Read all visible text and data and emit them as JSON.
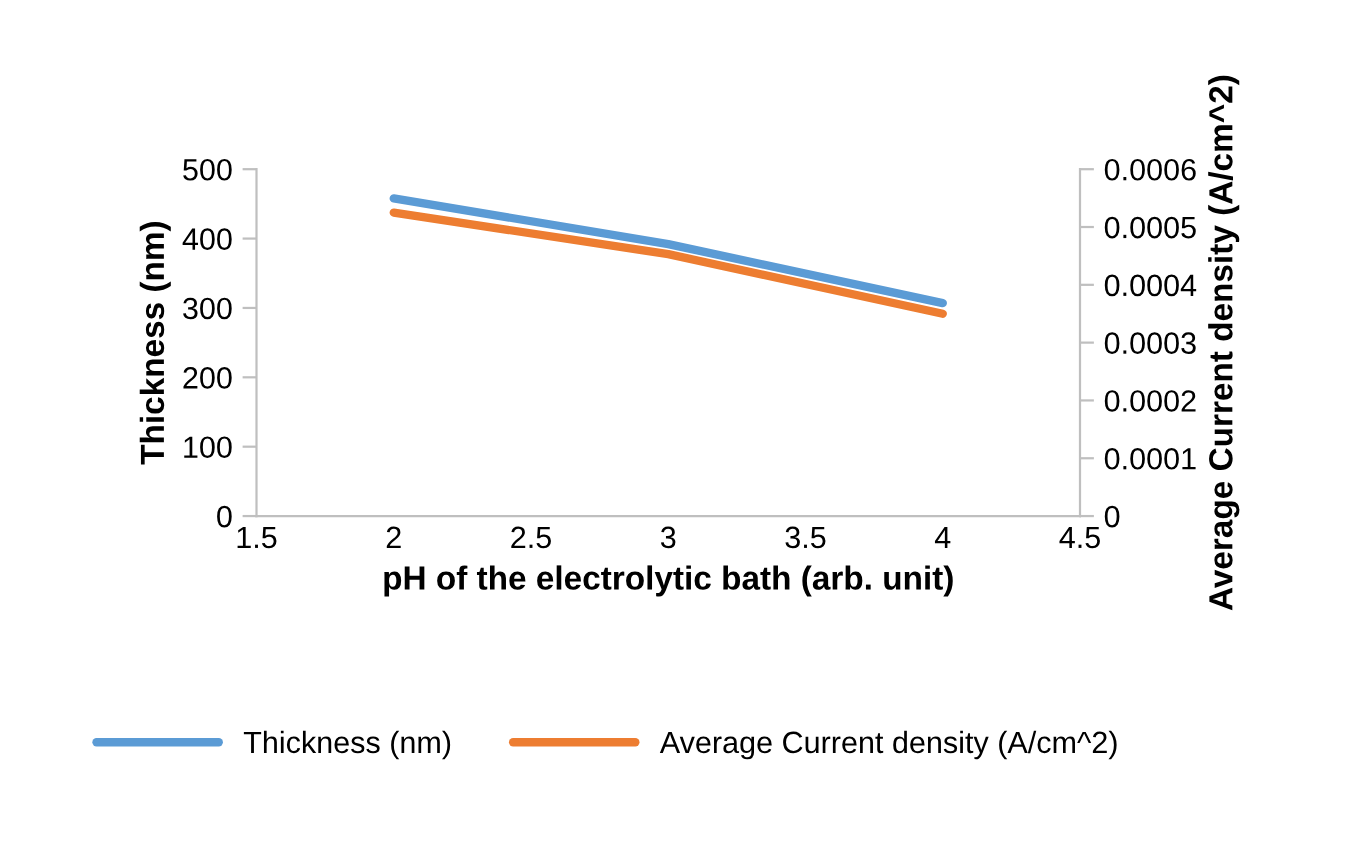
{
  "chart_data": {
    "type": "line",
    "xlabel": "pH of the electrolytic bath (arb. unit)",
    "ylabel": "Thickness (nm)",
    "y2label": "Average Current density (A/cm^2)",
    "x": [
      2,
      3,
      4
    ],
    "series": [
      {
        "name": "Thickness (nm)",
        "color": "#5b9bd5",
        "values": [
          458,
          392,
          307
        ]
      },
      {
        "name": "Average Current density (A/cm^2)",
        "color": "#ed7d31",
        "values": [
          0.000525,
          0.000453,
          0.00035
        ],
        "axis": "y2"
      }
    ],
    "xlim": [
      1.5,
      4.5
    ],
    "xticks": [
      1.5,
      2,
      2.5,
      3,
      3.5,
      4,
      4.5
    ],
    "ylim": [
      0,
      500
    ],
    "yticks": [
      0,
      100,
      200,
      300,
      400,
      500
    ],
    "y2lim": [
      0,
      0.0006
    ],
    "y2ticks": [
      0,
      0.0001,
      0.0002,
      0.0003,
      0.0004,
      0.0005,
      0.0006
    ],
    "grid": false,
    "legend": "bottom",
    "marker": "none",
    "line_style": "solid"
  }
}
